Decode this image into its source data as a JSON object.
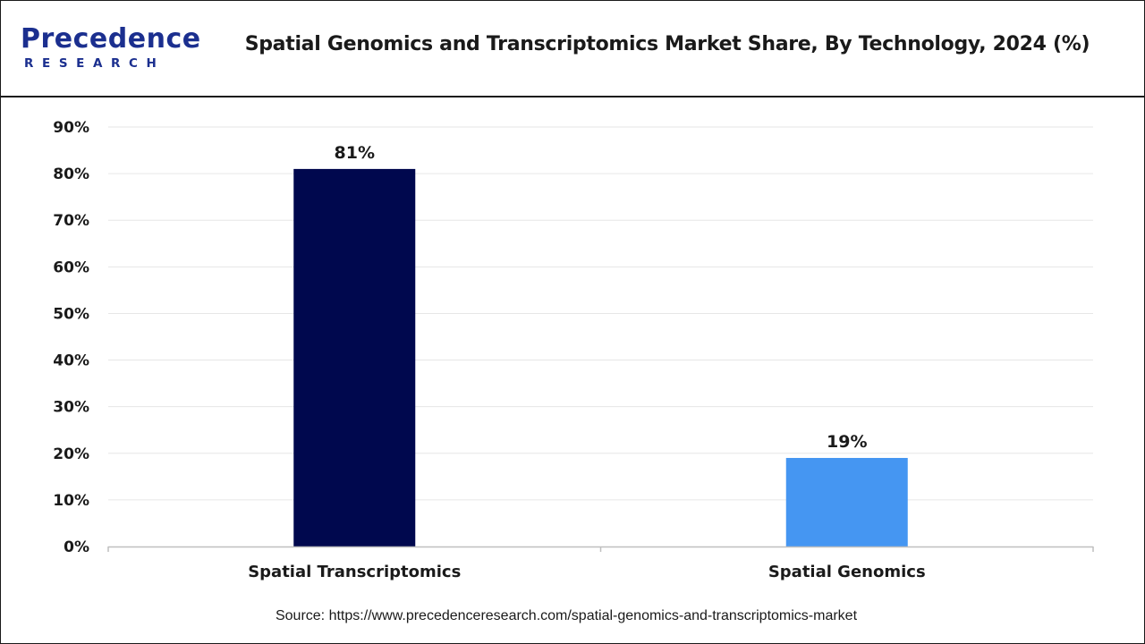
{
  "brand": {
    "name": "Precedence",
    "sub": "RESEARCH",
    "color": "#1b2f8f"
  },
  "chart_data": {
    "type": "bar",
    "title": "Spatial Genomics and Transcriptomics Market Share, By Technology, 2024 (%)",
    "categories": [
      "Spatial Transcriptomics",
      "Spatial Genomics"
    ],
    "values": [
      81,
      19
    ],
    "data_labels": [
      "81%",
      "19%"
    ],
    "colors": [
      "#00084e",
      "#4596f2"
    ],
    "ylim": [
      0,
      90
    ],
    "yticks": [
      "0%",
      "10%",
      "20%",
      "30%",
      "40%",
      "50%",
      "60%",
      "70%",
      "80%",
      "90%"
    ],
    "grid": true,
    "legend": "none"
  },
  "source": "Source: https://www.precedenceresearch.com/spatial-genomics-and-transcriptomics-market"
}
